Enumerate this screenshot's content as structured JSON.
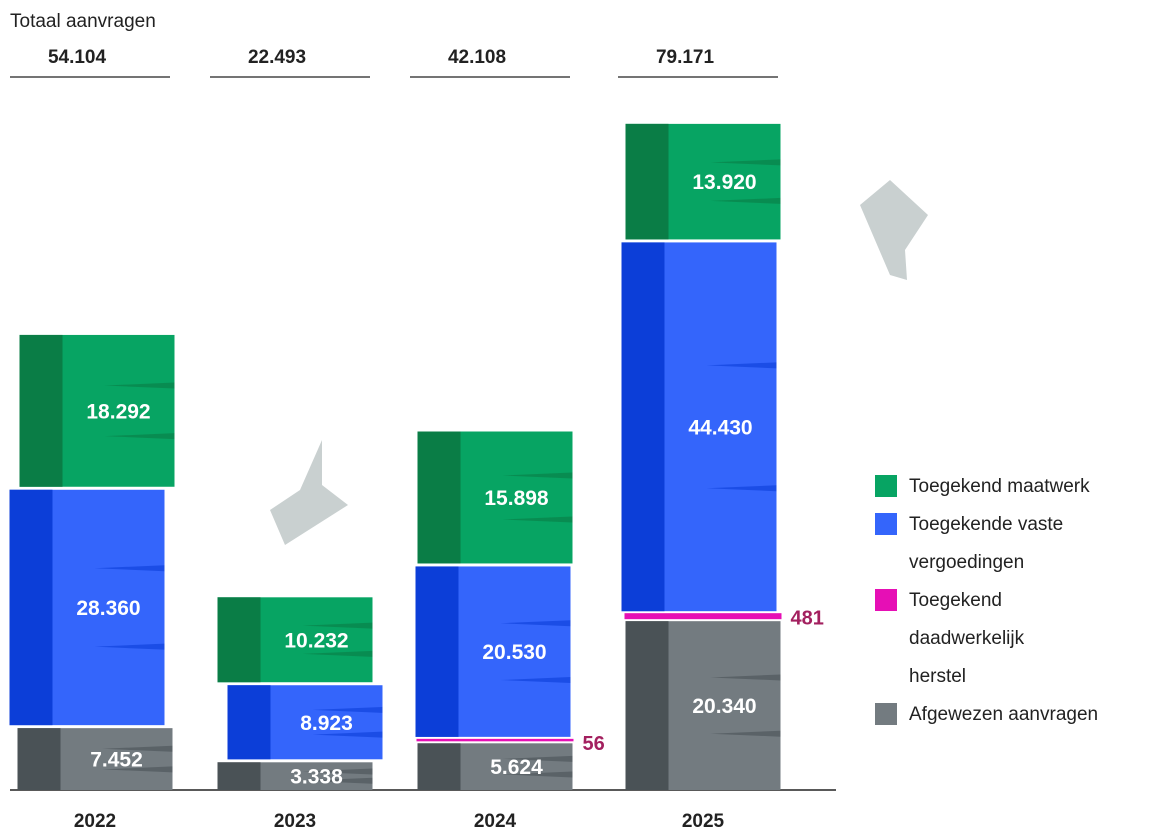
{
  "chart_data": {
    "type": "stacked-bar",
    "totals_title": "Totaal aanvragen",
    "categories": [
      "2022",
      "2023",
      "2024",
      "2025"
    ],
    "totals": {
      "values": [
        54104,
        22493,
        42108,
        79171
      ],
      "value_labels": [
        "54.104",
        "22.493",
        "42.108",
        "79.171"
      ]
    },
    "series": [
      {
        "name": "Afgewezen aanvragen",
        "color": "#737b80",
        "dark": "#4a5256",
        "values": [
          7452,
          3338,
          5624,
          20340
        ],
        "value_labels": [
          "7.452",
          "3.338",
          "5.624",
          "20.340"
        ]
      },
      {
        "name": "Toegekend daadwerkelijk herstel",
        "color": "#e60fb5",
        "dark": "#a3205f",
        "values": [
          null,
          null,
          56,
          481
        ],
        "value_labels": [
          null,
          null,
          "56",
          "481"
        ]
      },
      {
        "name": "Toegekende vaste vergoedingen",
        "color": "#3465fb",
        "dark": "#0c3ed8",
        "values": [
          28360,
          8923,
          20530,
          44430
        ],
        "value_labels": [
          "28.360",
          "8.923",
          "20.530",
          "44.430"
        ]
      },
      {
        "name": "Toegekend maatwerk",
        "color": "#07a463",
        "dark": "#0a7d46",
        "values": [
          18292,
          10232,
          15898,
          13920
        ],
        "value_labels": [
          "18.292",
          "10.232",
          "15.898",
          "13.920"
        ]
      }
    ]
  }
}
